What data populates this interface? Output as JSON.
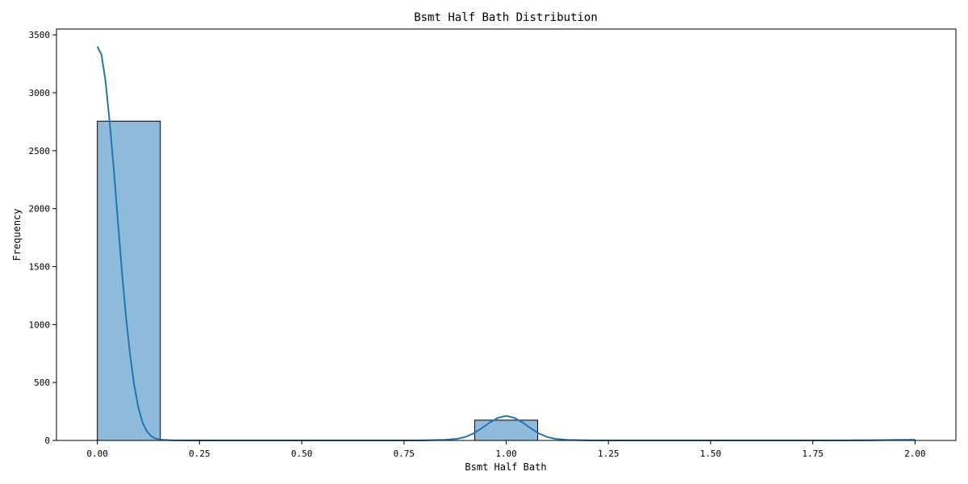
{
  "chart_data": {
    "type": "bar",
    "title": "Bsmt Half Bath Distribution",
    "xlabel": "Bsmt Half Bath",
    "ylabel": "Frequency",
    "xlim": [
      -0.1,
      2.1
    ],
    "ylim": [
      0,
      3550
    ],
    "xticks": [
      0.0,
      0.25,
      0.5,
      0.75,
      1.0,
      1.25,
      1.5,
      1.75,
      2.0
    ],
    "xtick_labels": [
      "0.00",
      "0.25",
      "0.50",
      "0.75",
      "1.00",
      "1.25",
      "1.50",
      "1.75",
      "2.00"
    ],
    "yticks": [
      0,
      500,
      1000,
      1500,
      2000,
      2500,
      3000,
      3500
    ],
    "ytick_labels": [
      "0",
      "500",
      "1000",
      "1500",
      "2000",
      "2500",
      "3000",
      "3500"
    ],
    "grid": false,
    "bins": [
      {
        "x0": 0.0,
        "x1": 0.154,
        "count": 2755
      },
      {
        "x0": 0.923,
        "x1": 1.077,
        "count": 175
      },
      {
        "x0": 1.846,
        "x1": 2.0,
        "count": 4
      }
    ],
    "kde": {
      "x": [
        0.0,
        0.01,
        0.02,
        0.03,
        0.04,
        0.05,
        0.06,
        0.07,
        0.08,
        0.09,
        0.1,
        0.11,
        0.12,
        0.13,
        0.14,
        0.15,
        0.16,
        0.18,
        0.2,
        0.25,
        0.5,
        0.75,
        0.8,
        0.85,
        0.88,
        0.9,
        0.92,
        0.94,
        0.96,
        0.98,
        1.0,
        1.02,
        1.04,
        1.06,
        1.08,
        1.1,
        1.12,
        1.15,
        1.2,
        1.25,
        1.5,
        1.75,
        1.85,
        1.9,
        1.95,
        2.0
      ],
      "y": [
        3400,
        3330,
        3100,
        2750,
        2350,
        1900,
        1460,
        1070,
        740,
        480,
        290,
        160,
        85,
        42,
        20,
        10,
        5,
        2,
        1,
        0,
        0,
        0,
        1,
        5,
        14,
        30,
        60,
        105,
        155,
        195,
        212,
        195,
        155,
        105,
        60,
        30,
        14,
        4,
        1,
        0,
        0,
        0,
        1,
        2,
        4,
        6
      ]
    }
  }
}
